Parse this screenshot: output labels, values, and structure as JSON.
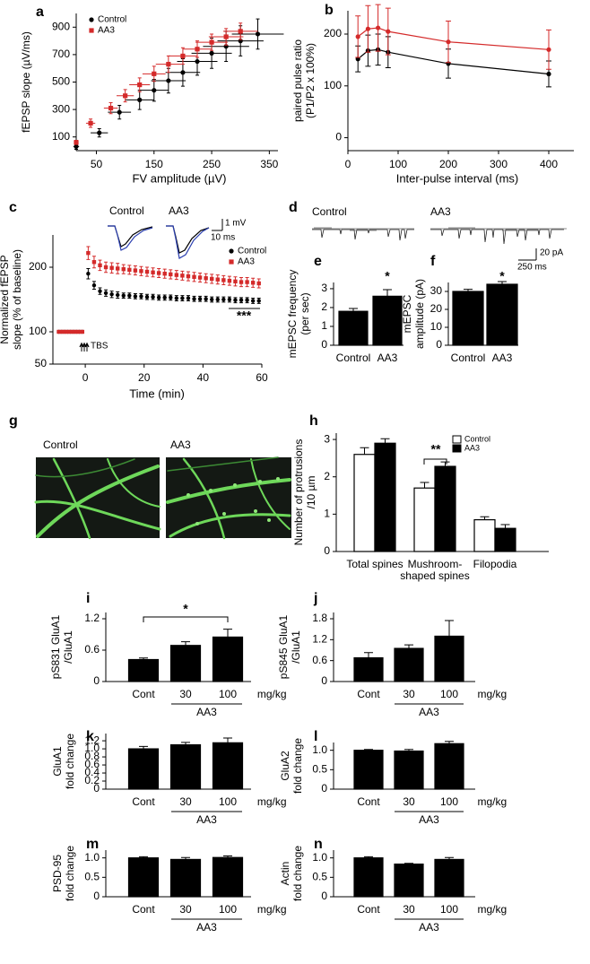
{
  "chart_data": [
    {
      "type": "scatter",
      "panel": "a",
      "ylabel": [
        "fEPSP slope (µV/ms)"
      ],
      "xlabel": "FV amplitude (µV)",
      "xlim": [
        15,
        365
      ],
      "ylim": [
        0,
        1000
      ],
      "xticks": [
        50,
        150,
        250,
        350
      ],
      "yticks": [
        100,
        300,
        500,
        700,
        900
      ],
      "legend": "upper left",
      "series": [
        {
          "name": "Control",
          "color": "#000000",
          "marker": "circle",
          "x": [
            15,
            55,
            90,
            125,
            150,
            175,
            200,
            225,
            250,
            275,
            300,
            330
          ],
          "values": [
            30,
            130,
            280,
            370,
            440,
            510,
            570,
            650,
            710,
            760,
            800,
            850
          ],
          "xerr": [
            5,
            15,
            20,
            25,
            25,
            30,
            30,
            35,
            35,
            40,
            40,
            45
          ],
          "yerr": [
            20,
            30,
            50,
            70,
            80,
            90,
            100,
            100,
            110,
            110,
            110,
            110
          ]
        },
        {
          "name": "AA3",
          "color": "#d42a2a",
          "marker": "square",
          "x": [
            15,
            40,
            75,
            100,
            125,
            150,
            175,
            200,
            225,
            250,
            275,
            300
          ],
          "values": [
            60,
            200,
            310,
            400,
            480,
            560,
            630,
            690,
            740,
            790,
            830,
            870
          ],
          "xerr": [
            3,
            8,
            12,
            15,
            18,
            20,
            22,
            25,
            25,
            28,
            30,
            30
          ],
          "yerr": [
            15,
            30,
            40,
            45,
            50,
            55,
            60,
            60,
            60,
            60,
            60,
            60
          ]
        }
      ]
    },
    {
      "type": "line",
      "panel": "b",
      "ylabel": [
        "paired pulse ratio",
        "(P1/P2 x 100%)"
      ],
      "xlabel": "Inter-pulse interval (ms)",
      "xlim": [
        0,
        450
      ],
      "ylim": [
        -25,
        245
      ],
      "xticks": [
        0,
        100,
        200,
        300,
        400
      ],
      "yticks": [
        0,
        100,
        200
      ],
      "x": [
        20,
        40,
        60,
        80,
        200,
        400
      ],
      "series": [
        {
          "name": "Control",
          "color": "#000000",
          "marker": "circle",
          "values": [
            152,
            168,
            170,
            165,
            143,
            123
          ],
          "yerr": [
            25,
            30,
            30,
            30,
            28,
            25
          ]
        },
        {
          "name": "AA3",
          "color": "#d42a2a",
          "marker": "circle",
          "values": [
            195,
            210,
            212,
            205,
            185,
            170
          ],
          "yerr": [
            40,
            45,
            45,
            45,
            40,
            38
          ]
        }
      ]
    },
    {
      "type": "scatter",
      "panel": "c",
      "ylabel": [
        "Normalized fEPSP",
        "slope (% of baseline)"
      ],
      "xlabel": "Time (min)",
      "xlim": [
        -11,
        60
      ],
      "ylim": [
        50,
        250
      ],
      "xticks": [
        0,
        20,
        40,
        60
      ],
      "yticks": [
        50,
        100,
        200
      ],
      "legend": "upper right",
      "annotations": [
        "TBS",
        "***"
      ],
      "inset": {
        "labels": [
          "Control",
          "AA3"
        ],
        "scale": [
          "1 mV",
          "10 ms"
        ]
      },
      "x": [
        -9,
        -8,
        -7,
        -6,
        -5,
        -4,
        -3,
        -2,
        -1,
        1,
        3,
        5,
        7,
        9,
        11,
        13,
        15,
        17,
        19,
        21,
        23,
        25,
        27,
        29,
        31,
        33,
        35,
        37,
        39,
        41,
        43,
        45,
        47,
        49,
        51,
        53,
        55,
        57,
        59
      ],
      "series": [
        {
          "name": "Control",
          "color": "#000000",
          "marker": "circle",
          "values": [
            100,
            100,
            100,
            100,
            100,
            100,
            100,
            100,
            100,
            190,
            172,
            163,
            160,
            158,
            157,
            156,
            156,
            155,
            155,
            154,
            154,
            153,
            153,
            153,
            152,
            152,
            152,
            151,
            151,
            151,
            150,
            150,
            150,
            150,
            149,
            149,
            149,
            148,
            148
          ],
          "yerr": [
            2,
            2,
            2,
            2,
            2,
            2,
            2,
            2,
            2,
            8,
            6,
            5,
            5,
            5,
            5,
            4,
            4,
            4,
            4,
            4,
            4,
            4,
            4,
            4,
            4,
            4,
            4,
            4,
            4,
            4,
            4,
            4,
            4,
            4,
            4,
            4,
            4,
            4,
            4
          ]
        },
        {
          "name": "AA3",
          "color": "#d42a2a",
          "marker": "square",
          "values": [
            100,
            100,
            100,
            100,
            100,
            100,
            100,
            100,
            100,
            222,
            208,
            203,
            200,
            199,
            198,
            197,
            196,
            195,
            194,
            193,
            192,
            191,
            190,
            189,
            188,
            187,
            186,
            185,
            184,
            183,
            182,
            181,
            180,
            179,
            178,
            177,
            177,
            176,
            175
          ],
          "yerr": [
            2,
            2,
            2,
            2,
            2,
            2,
            2,
            2,
            2,
            10,
            9,
            8,
            8,
            8,
            8,
            7,
            7,
            7,
            7,
            7,
            7,
            7,
            7,
            7,
            7,
            7,
            7,
            7,
            7,
            7,
            7,
            7,
            7,
            7,
            7,
            7,
            7,
            7,
            7
          ]
        }
      ]
    },
    {
      "type": "bar",
      "panel": "e",
      "ylabel": [
        "mEPSC frequency",
        "(per sec)"
      ],
      "ylim": [
        0,
        3.33
      ],
      "yticks": [
        0,
        1,
        2,
        3
      ],
      "categories": [
        "Control",
        "AA3"
      ],
      "values": [
        1.8,
        2.6
      ],
      "errors": [
        0.15,
        0.35
      ],
      "color": "#000000",
      "annotations": [
        "*"
      ]
    },
    {
      "type": "bar",
      "panel": "f",
      "ylabel": [
        "mEPSC",
        "amplitude (pA)"
      ],
      "ylim": [
        0,
        35
      ],
      "yticks": [
        0,
        10,
        20,
        30
      ],
      "categories": [
        "Control",
        "AA3"
      ],
      "values": [
        30,
        34
      ],
      "errors": [
        1.2,
        1.5
      ],
      "color": "#000000",
      "annotations": [
        "*"
      ]
    },
    {
      "type": "bar",
      "panel": "h",
      "ylabel": [
        "Number of protrusions",
        "/10 µm"
      ],
      "ylim": [
        0,
        3.17
      ],
      "yticks": [
        0,
        1,
        2,
        3
      ],
      "legend": "upper right",
      "categories": [
        "Total spines",
        "Mushroom-shaped spines",
        "Filopodia"
      ],
      "annotations": [
        "**"
      ],
      "series": [
        {
          "name": "Control",
          "color": "#ffffff",
          "values": [
            2.6,
            1.7,
            0.85
          ],
          "errors": [
            0.18,
            0.15,
            0.08
          ]
        },
        {
          "name": "AA3",
          "color": "#000000",
          "values": [
            2.9,
            2.28,
            0.62
          ],
          "errors": [
            0.12,
            0.12,
            0.1
          ]
        }
      ]
    },
    {
      "type": "bar",
      "panel": "i",
      "ylabel": [
        "pS831 GluA1",
        "/GluA1"
      ],
      "ylim": [
        0,
        1.32
      ],
      "yticks": [
        0,
        0.6,
        1.2
      ],
      "categories": [
        "Cont",
        "30",
        "100"
      ],
      "unit": "mg/kg",
      "group_label": "AA3",
      "values": [
        0.42,
        0.69,
        0.85
      ],
      "errors": [
        0.03,
        0.07,
        0.15
      ],
      "color": "#000000",
      "annotations": [
        "*"
      ]
    },
    {
      "type": "bar",
      "panel": "j",
      "ylabel": [
        "pS845 GluA1",
        "/GluA1"
      ],
      "ylim": [
        0,
        1.98
      ],
      "yticks": [
        0,
        0.6,
        1.2,
        1.8
      ],
      "categories": [
        "Cont",
        "30",
        "100"
      ],
      "unit": "mg/kg",
      "group_label": "AA3",
      "values": [
        0.68,
        0.95,
        1.3
      ],
      "errors": [
        0.15,
        0.1,
        0.45
      ],
      "color": "#000000"
    },
    {
      "type": "bar",
      "panel": "k",
      "ylabel": [
        "GluA1",
        "fold change"
      ],
      "ylim": [
        0,
        1.38
      ],
      "yticks": [
        0,
        0.2,
        0.4,
        0.6,
        0.8,
        {
          "value": 1,
          "label": "1.0"
        },
        1.2
      ],
      "categories": [
        "Cont",
        "30",
        "100"
      ],
      "unit": "mg/kg",
      "group_label": "AA3",
      "values": [
        1.0,
        1.1,
        1.15
      ],
      "errors": [
        0.06,
        0.06,
        0.12
      ],
      "color": "#000000"
    },
    {
      "type": "bar",
      "panel": "l",
      "ylabel": [
        "GluA2",
        "fold change"
      ],
      "ylim": [
        0,
        1.2
      ],
      "yticks": [
        0,
        0.5,
        {
          "value": 1,
          "label": "1.0"
        }
      ],
      "categories": [
        "Cont",
        "30",
        "100"
      ],
      "unit": "mg/kg",
      "group_label": "AA3",
      "values": [
        1.0,
        0.98,
        1.17
      ],
      "errors": [
        0.02,
        0.04,
        0.06
      ],
      "color": "#000000"
    },
    {
      "type": "bar",
      "panel": "m",
      "ylabel": [
        "PSD-95",
        "fold change"
      ],
      "ylim": [
        0,
        1.2
      ],
      "yticks": [
        0,
        0.5,
        {
          "value": 1,
          "label": "1.0"
        }
      ],
      "categories": [
        "Cont",
        "30",
        "100"
      ],
      "unit": "mg/kg",
      "group_label": "AA3",
      "values": [
        1.0,
        0.96,
        1.01
      ],
      "errors": [
        0.03,
        0.05,
        0.04
      ],
      "color": "#000000"
    },
    {
      "type": "bar",
      "panel": "n",
      "ylabel": [
        "Actin",
        "fold change"
      ],
      "ylim": [
        0,
        1.2
      ],
      "yticks": [
        0,
        0.5,
        {
          "value": 1,
          "label": "1.0"
        }
      ],
      "categories": [
        "Cont",
        "30",
        "100"
      ],
      "unit": "mg/kg",
      "group_label": "AA3",
      "values": [
        1.0,
        0.84,
        0.96
      ],
      "errors": [
        0.03,
        0.02,
        0.05
      ],
      "color": "#000000"
    }
  ],
  "panel_d": {
    "panel": "d",
    "labels": [
      "Control",
      "AA3"
    ],
    "scale": [
      "20 pA",
      "250 ms"
    ]
  },
  "panel_g": {
    "panel": "g",
    "labels": [
      "Control",
      "AA3"
    ]
  }
}
